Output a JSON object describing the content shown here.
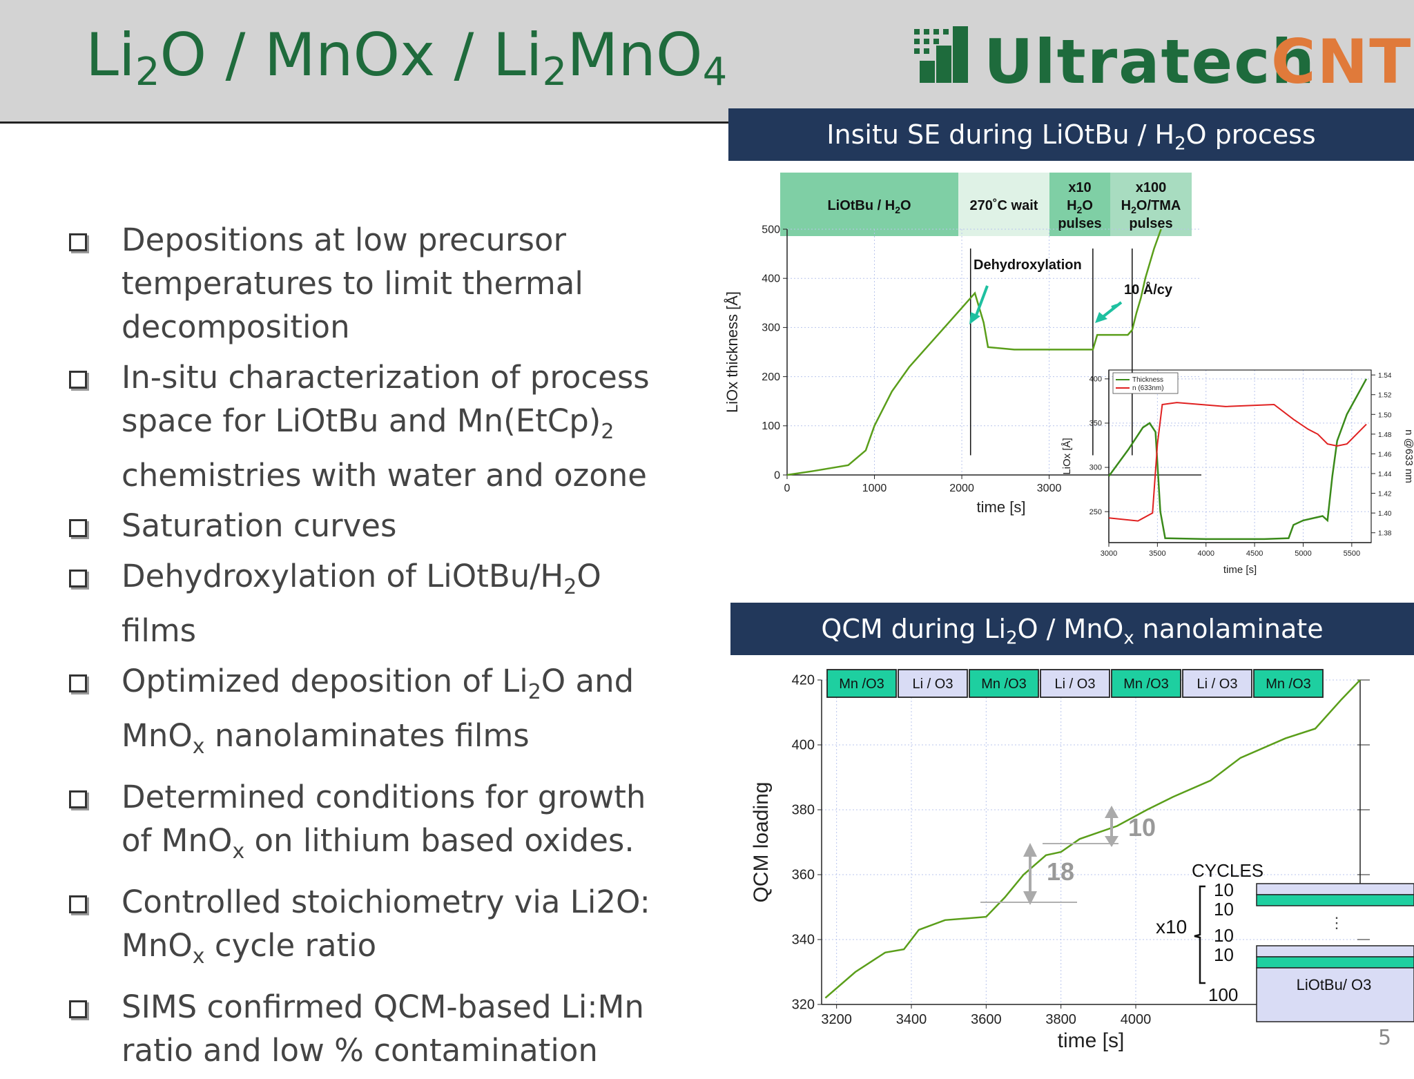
{
  "slide": {
    "title_parts": [
      "Li",
      "2",
      "O / MnOx / Li",
      "2",
      "MnO",
      "4"
    ],
    "logo": {
      "word1": "Ultratech",
      "word2": "CNT",
      "colors": {
        "green": "#1e6b3c",
        "orange": "#e07a3a"
      }
    },
    "page_number": "5"
  },
  "bullets": [
    {
      "parts": [
        "Depositions  at low precursor temperatures to limit thermal decomposition"
      ]
    },
    {
      "parts": [
        "In-situ characterization of process space for LiOtBu and Mn(EtCp)",
        "2",
        " chemistries with water and ozone"
      ]
    },
    {
      "parts": [
        "Saturation curves"
      ]
    },
    {
      "parts": [
        "Dehydroxylation  of LiOtBu/H",
        "2",
        "O films"
      ]
    },
    {
      "parts": [
        "Optimized deposition  of Li",
        "2",
        "O and MnO",
        "x",
        " nanolaminates films"
      ]
    },
    {
      "parts": [
        "Determined  conditions  for growth  of MnO",
        "x",
        " on lithium  based oxides."
      ]
    },
    {
      "parts": [
        "Controlled stoichiometry via Li2O: MnO",
        "x",
        " cycle ratio"
      ]
    },
    {
      "parts": [
        "SIMS confirmed QCM-based Li:Mn ratio and low % contamination"
      ]
    }
  ],
  "se_panel": {
    "banner_parts": [
      "Insitu SE during LiOtBu / H",
      "2",
      "O process"
    ],
    "phases": [
      {
        "label": "LiOtBu / H2O",
        "color": "#7fcfa5"
      },
      {
        "label": "270˚C wait",
        "color": "#dff2e6"
      },
      {
        "label": "x10 H2O pulses",
        "color": "#7fcfa5"
      },
      {
        "label": "x100 H2O/TMA pulses",
        "color": "#a8dcc0"
      }
    ],
    "annotations": [
      "Dehydroxylation",
      "10 Å/cy"
    ]
  },
  "chart_data": [
    {
      "type": "line",
      "xlabel": "time [s]",
      "ylabel": "LiOx thickness [Å]",
      "xticks": [
        0,
        1000,
        2000,
        3000
      ],
      "yticks": [
        0,
        100,
        200,
        300,
        400,
        500
      ],
      "xlim": [
        0,
        4900
      ],
      "ylim": [
        0,
        500
      ],
      "series": [
        {
          "color": "#5a9e1a",
          "points": [
            [
              0,
              0
            ],
            [
              300,
              8
            ],
            [
              700,
              20
            ],
            [
              900,
              50
            ],
            [
              1000,
              100
            ],
            [
              1200,
              170
            ],
            [
              1400,
              220
            ],
            [
              1600,
              260
            ],
            [
              1800,
              300
            ],
            [
              2000,
              340
            ],
            [
              2150,
              370
            ],
            [
              2250,
              310
            ],
            [
              2300,
              260
            ],
            [
              2600,
              255
            ],
            [
              3000,
              255
            ],
            [
              3500,
              255
            ],
            [
              3550,
              285
            ],
            [
              3900,
              285
            ],
            [
              3950,
              295
            ],
            [
              4000,
              330
            ],
            [
              4050,
              360
            ],
            [
              4100,
              400
            ],
            [
              4200,
              460
            ],
            [
              4280,
              500
            ]
          ]
        }
      ]
    },
    {
      "type": "line",
      "xlabel": "time [s]",
      "ylabel": "LiOx [Å]",
      "y2label": "n @633 nm",
      "xticks": [
        3000,
        3500,
        4000,
        4500,
        5000,
        5500
      ],
      "yticks": [
        250,
        300,
        350,
        400
      ],
      "y2ticks": [
        1.38,
        1.4,
        1.42,
        1.44,
        1.46,
        1.48,
        1.5,
        1.52,
        1.54
      ],
      "xlim": [
        3000,
        5700
      ],
      "ylim": [
        215,
        410
      ],
      "y2lim": [
        1.37,
        1.545
      ],
      "legend": "top-left",
      "series": [
        {
          "name": "Thickness",
          "color": "#3a8a1a",
          "axis": "left",
          "points": [
            [
              3000,
              290
            ],
            [
              3200,
              320
            ],
            [
              3350,
              345
            ],
            [
              3420,
              350
            ],
            [
              3480,
              340
            ],
            [
              3530,
              250
            ],
            [
              3580,
              220
            ],
            [
              4000,
              219
            ],
            [
              4600,
              219
            ],
            [
              4850,
              220
            ],
            [
              4900,
              235
            ],
            [
              5000,
              240
            ],
            [
              5200,
              245
            ],
            [
              5250,
              240
            ],
            [
              5300,
              290
            ],
            [
              5350,
              330
            ],
            [
              5450,
              360
            ],
            [
              5550,
              380
            ],
            [
              5650,
              400
            ]
          ]
        },
        {
          "name": "n (633nm)",
          "color": "#e02020",
          "axis": "right",
          "points": [
            [
              3000,
              1.395
            ],
            [
              3300,
              1.392
            ],
            [
              3450,
              1.4
            ],
            [
              3500,
              1.47
            ],
            [
              3550,
              1.51
            ],
            [
              3700,
              1.512
            ],
            [
              4200,
              1.508
            ],
            [
              4700,
              1.51
            ],
            [
              4900,
              1.495
            ],
            [
              5050,
              1.485
            ],
            [
              5150,
              1.48
            ],
            [
              5250,
              1.47
            ],
            [
              5350,
              1.468
            ],
            [
              5450,
              1.47
            ],
            [
              5650,
              1.49
            ]
          ]
        }
      ]
    },
    {
      "type": "line",
      "xlabel": "time [s]",
      "ylabel": "QCM loading",
      "xticks": [
        3200,
        3400,
        3600,
        3800,
        4000
      ],
      "yticks": [
        320,
        340,
        360,
        380,
        400,
        420
      ],
      "xlim": [
        3160,
        4600
      ],
      "ylim": [
        320,
        420
      ],
      "series": [
        {
          "color": "#5a9e1a",
          "points": [
            [
              3170,
              322
            ],
            [
              3250,
              330
            ],
            [
              3330,
              336
            ],
            [
              3380,
              337
            ],
            [
              3420,
              343
            ],
            [
              3490,
              346
            ],
            [
              3600,
              347
            ],
            [
              3650,
              353
            ],
            [
              3700,
              360
            ],
            [
              3760,
              366
            ],
            [
              3800,
              367
            ],
            [
              3850,
              371
            ],
            [
              3950,
              375
            ],
            [
              4030,
              380
            ],
            [
              4100,
              384
            ],
            [
              4200,
              389
            ],
            [
              4280,
              396
            ],
            [
              4400,
              402
            ],
            [
              4480,
              405
            ],
            [
              4550,
              414
            ],
            [
              4600,
              420
            ]
          ]
        }
      ],
      "phase_labels": [
        "Mn /O3",
        "Li / O3",
        "Mn /O3",
        "Li / O3",
        "Mn /O3",
        "Li / O3",
        "Mn /O3"
      ],
      "annotations": [
        "18",
        "10"
      ]
    }
  ],
  "qcm_panel": {
    "banner_parts": [
      "QCM during Li",
      "2",
      "O / MnO",
      "x",
      "  nanolaminate"
    ],
    "inset": {
      "cycles_label": "CYCLES",
      "counts": [
        "10",
        "10",
        "10",
        "10"
      ],
      "multiplier": "x10",
      "base_count": "100",
      "base_label": "LiOtBu/ O3",
      "colors": {
        "mn": "#1ecfa0",
        "li": "#d9dcf5"
      }
    }
  }
}
